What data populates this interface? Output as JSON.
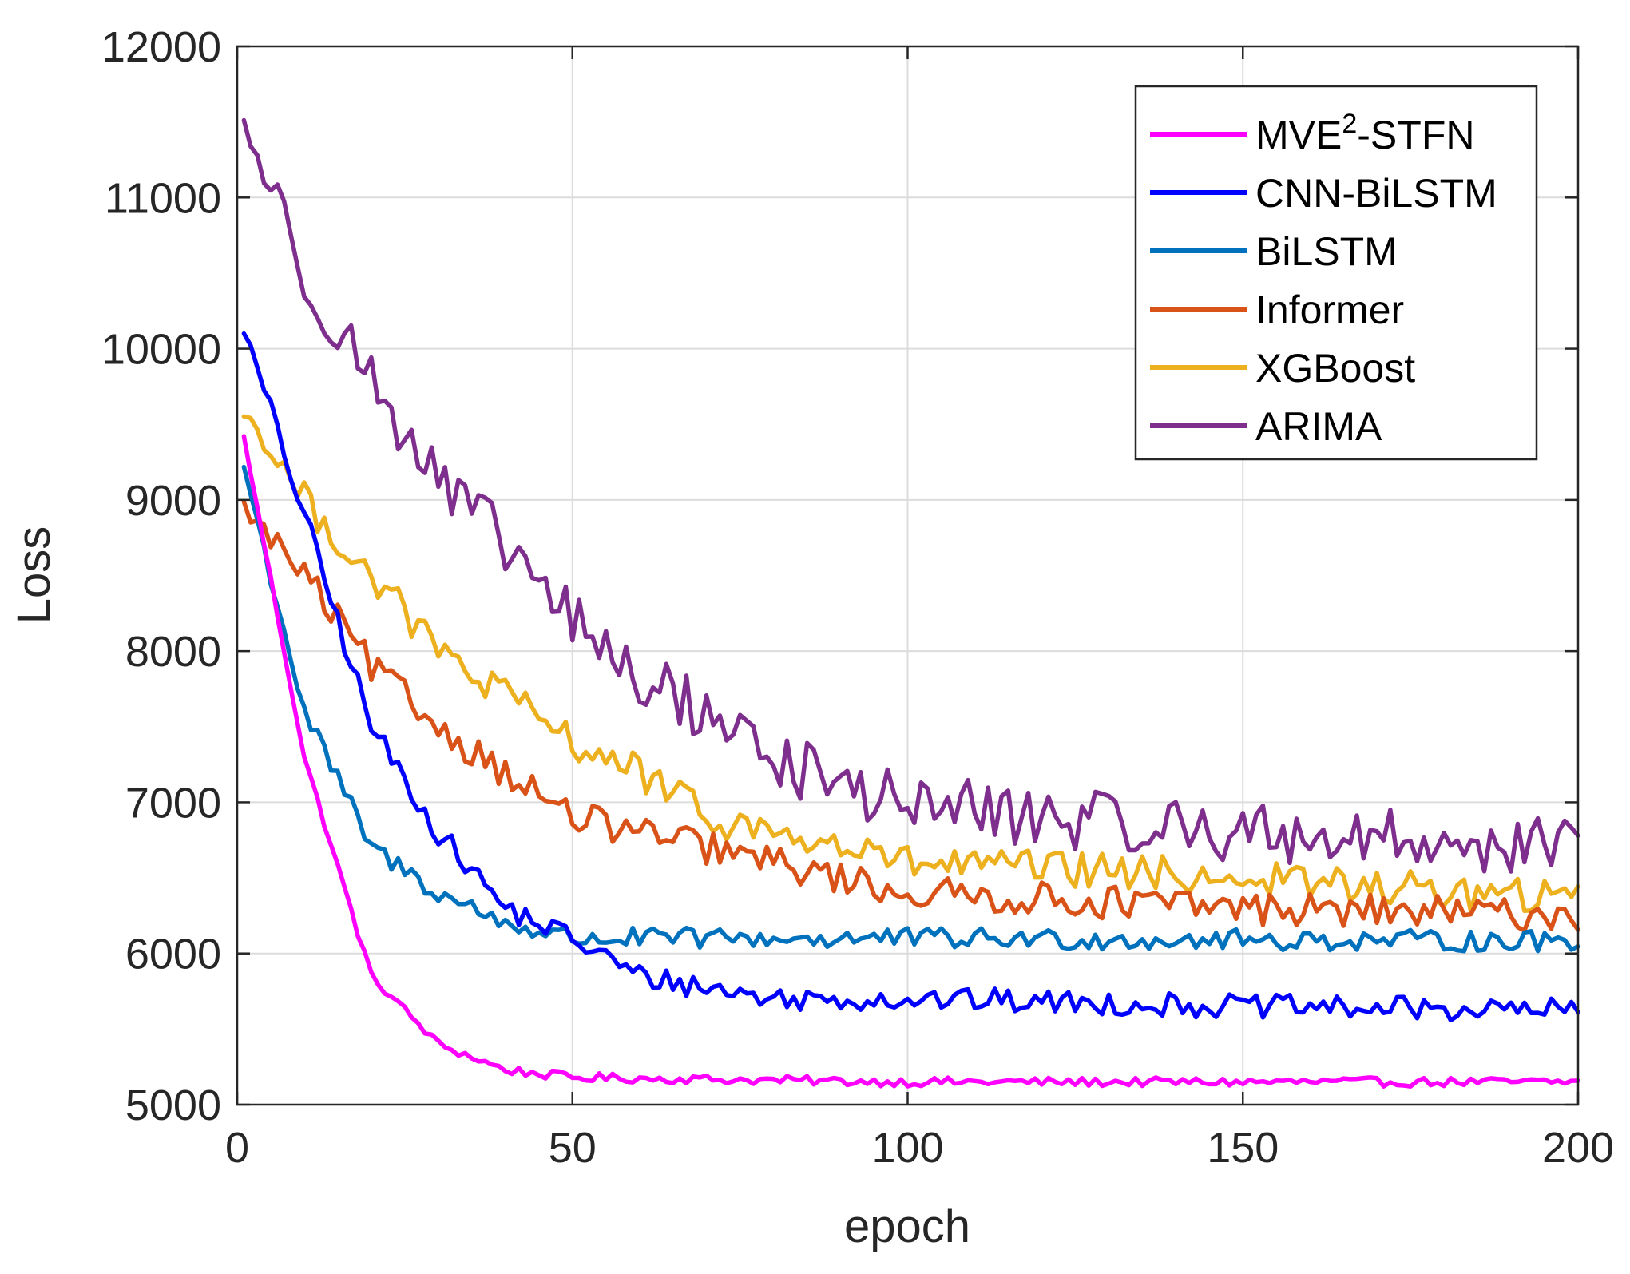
{
  "chart_data": {
    "type": "line",
    "title": "",
    "xlabel": "epoch",
    "ylabel": "Loss",
    "xlim": [
      0,
      200
    ],
    "ylim": [
      5000,
      12000
    ],
    "xticks": [
      0,
      50,
      100,
      150,
      200
    ],
    "yticks": [
      5000,
      6000,
      7000,
      8000,
      9000,
      10000,
      11000,
      12000
    ],
    "xtick_labels": [
      "0",
      "50",
      "100",
      "150",
      "200"
    ],
    "ytick_labels": [
      "5000",
      "6000",
      "7000",
      "8000",
      "9000",
      "10000",
      "11000",
      "12000"
    ],
    "grid": true,
    "legend_position": "top-right",
    "series": [
      {
        "name": "MVE2-STFN",
        "label_main": "MVE",
        "label_sup": "2",
        "label_rest": "-STFN",
        "color": "#FF00FF",
        "start": 9650,
        "end": 5150,
        "tau": 9.5,
        "noise": 30,
        "anchors": [
          [
            0,
            9650
          ],
          [
            10,
            7300
          ],
          [
            20,
            5850
          ],
          [
            30,
            5400
          ],
          [
            40,
            5230
          ],
          [
            50,
            5180
          ],
          [
            100,
            5150
          ],
          [
            200,
            5150
          ]
        ]
      },
      {
        "name": "CNN-BiLSTM",
        "label_main": "CNN-BiLSTM",
        "color": "#0000FF",
        "start": 10270,
        "end": 5650,
        "tau": 22,
        "noise": 80,
        "anchors": [
          [
            0,
            10270
          ],
          [
            10,
            8900
          ],
          [
            20,
            7500
          ],
          [
            30,
            6800
          ],
          [
            40,
            6300
          ],
          [
            50,
            6100
          ],
          [
            60,
            5850
          ],
          [
            80,
            5700
          ],
          [
            100,
            5700
          ],
          [
            150,
            5650
          ],
          [
            200,
            5620
          ]
        ]
      },
      {
        "name": "BiLSTM",
        "label_main": "BiLSTM",
        "color": "#0072BD",
        "start": 9400,
        "end": 6100,
        "tau": 12,
        "noise": 70,
        "anchors": [
          [
            0,
            9400
          ],
          [
            10,
            7600
          ],
          [
            20,
            6700
          ],
          [
            30,
            6400
          ],
          [
            40,
            6200
          ],
          [
            50,
            6100
          ],
          [
            100,
            6100
          ],
          [
            200,
            6080
          ]
        ]
      },
      {
        "name": "Informer",
        "label_main": "Informer",
        "color": "#D95319",
        "start": 9000,
        "end": 6250,
        "tau": 45,
        "noise": 110,
        "anchors": [
          [
            0,
            9000
          ],
          [
            10,
            8500
          ],
          [
            20,
            7900
          ],
          [
            30,
            7500
          ],
          [
            40,
            7200
          ],
          [
            50,
            6900
          ],
          [
            70,
            6700
          ],
          [
            100,
            6400
          ],
          [
            150,
            6300
          ],
          [
            200,
            6250
          ]
        ]
      },
      {
        "name": "XGBoost",
        "label_main": "XGBoost",
        "color": "#EDB120",
        "start": 9650,
        "end": 6350,
        "tau": 45,
        "noise": 120,
        "anchors": [
          [
            0,
            9650
          ],
          [
            10,
            9000
          ],
          [
            20,
            8500
          ],
          [
            30,
            8000
          ],
          [
            40,
            7700
          ],
          [
            50,
            7400
          ],
          [
            60,
            7200
          ],
          [
            70,
            6900
          ],
          [
            90,
            6700
          ],
          [
            100,
            6600
          ],
          [
            150,
            6500
          ],
          [
            200,
            6350
          ]
        ]
      },
      {
        "name": "ARIMA",
        "label_main": "ARIMA",
        "color": "#7E2F8E",
        "start": 11600,
        "end": 6650,
        "tau": 55,
        "noise": 200,
        "anchors": [
          [
            0,
            11600
          ],
          [
            10,
            10500
          ],
          [
            20,
            9800
          ],
          [
            30,
            9100
          ],
          [
            40,
            8700
          ],
          [
            50,
            8200
          ],
          [
            60,
            7800
          ],
          [
            70,
            7600
          ],
          [
            80,
            7300
          ],
          [
            90,
            7100
          ],
          [
            100,
            7000
          ],
          [
            120,
            6900
          ],
          [
            150,
            6800
          ],
          [
            200,
            6700
          ]
        ]
      }
    ]
  }
}
